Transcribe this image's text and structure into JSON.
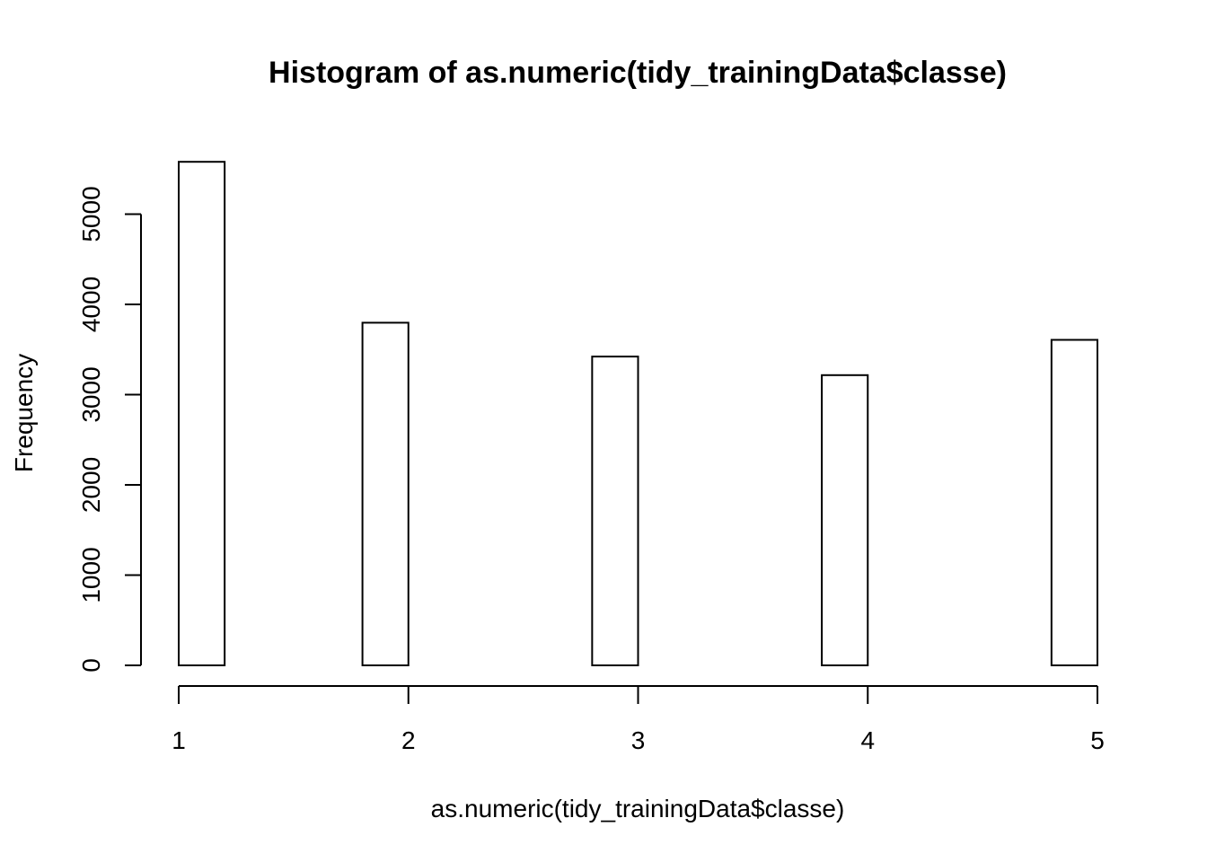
{
  "chart_data": {
    "type": "bar",
    "title": "Histogram of as.numeric(tidy_trainingData$classe)",
    "xlabel": "as.numeric(tidy_trainingData$classe)",
    "ylabel": "Frequency",
    "bins": [
      {
        "x0": 1.0,
        "x1": 1.2,
        "count": 5580
      },
      {
        "x0": 1.2,
        "x1": 1.4,
        "count": 0
      },
      {
        "x0": 1.4,
        "x1": 1.6,
        "count": 0
      },
      {
        "x0": 1.6,
        "x1": 1.8,
        "count": 0
      },
      {
        "x0": 1.8,
        "x1": 2.0,
        "count": 3797
      },
      {
        "x0": 2.0,
        "x1": 2.2,
        "count": 0
      },
      {
        "x0": 2.2,
        "x1": 2.4,
        "count": 0
      },
      {
        "x0": 2.4,
        "x1": 2.6,
        "count": 0
      },
      {
        "x0": 2.6,
        "x1": 2.8,
        "count": 0
      },
      {
        "x0": 2.8,
        "x1": 3.0,
        "count": 3422
      },
      {
        "x0": 3.0,
        "x1": 3.2,
        "count": 0
      },
      {
        "x0": 3.2,
        "x1": 3.4,
        "count": 0
      },
      {
        "x0": 3.4,
        "x1": 3.6,
        "count": 0
      },
      {
        "x0": 3.6,
        "x1": 3.8,
        "count": 0
      },
      {
        "x0": 3.8,
        "x1": 4.0,
        "count": 3216
      },
      {
        "x0": 4.0,
        "x1": 4.2,
        "count": 0
      },
      {
        "x0": 4.2,
        "x1": 4.4,
        "count": 0
      },
      {
        "x0": 4.4,
        "x1": 4.6,
        "count": 0
      },
      {
        "x0": 4.6,
        "x1": 4.8,
        "count": 0
      },
      {
        "x0": 4.8,
        "x1": 5.0,
        "count": 3607
      }
    ],
    "xticks": [
      1,
      2,
      3,
      4,
      5
    ],
    "yticks": [
      0,
      1000,
      2000,
      3000,
      4000,
      5000
    ],
    "xlim": [
      1,
      5
    ],
    "ylim": [
      0,
      5580
    ],
    "grid": false,
    "bar_fill": "#ffffff",
    "bar_stroke": "#000000"
  }
}
